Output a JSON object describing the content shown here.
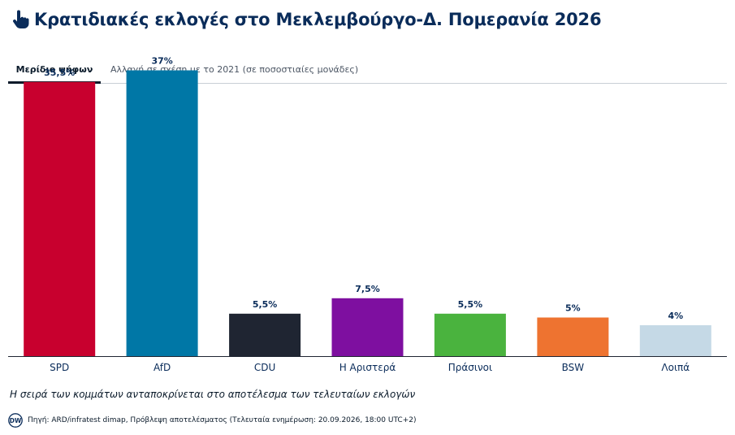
{
  "header": {
    "title": "Κρατιδιακές εκλογές στο Μεκλεμβούργο-Δ. Πομερανία 2026",
    "icon": "hand-pointer-icon"
  },
  "tabs": [
    {
      "label": "Μερίδιο ψήφων",
      "active": true
    },
    {
      "label": "Αλλαγή σε σχέση με το 2021 (σε ποσοστιαίες μονάδες)",
      "active": false
    }
  ],
  "chart_data": {
    "type": "bar",
    "title": "",
    "xlabel": "",
    "ylabel": "",
    "ylim": [
      0,
      40
    ],
    "grid": false,
    "categories": [
      "SPD",
      "AfD",
      "CDU",
      "Η Αριστερά",
      "Πράσινοι",
      "BSW",
      "Λοιπά"
    ],
    "values": [
      35.5,
      37,
      5.5,
      7.5,
      5.5,
      5,
      4
    ],
    "value_labels": [
      "35,5%",
      "37%",
      "5,5%",
      "7,5%",
      "5,5%",
      "5%",
      "4%"
    ],
    "colors": [
      "#c8002e",
      "#0077a6",
      "#1f2532",
      "#7e0fa0",
      "#4ab33e",
      "#ee7330",
      "#c5d9e6"
    ]
  },
  "note": "Η σειρά των κομμάτων ανταποκρίνεται στο αποτέλεσμα των τελευταίων εκλογών",
  "footer": {
    "logo_text": "DW",
    "source": "Πηγή: ARD/infratest dimap, Πρόβλεψη αποτελέσματος (Τελευταία ενημέρωση: 20.09.2026, 18:00 UTC+2)"
  }
}
